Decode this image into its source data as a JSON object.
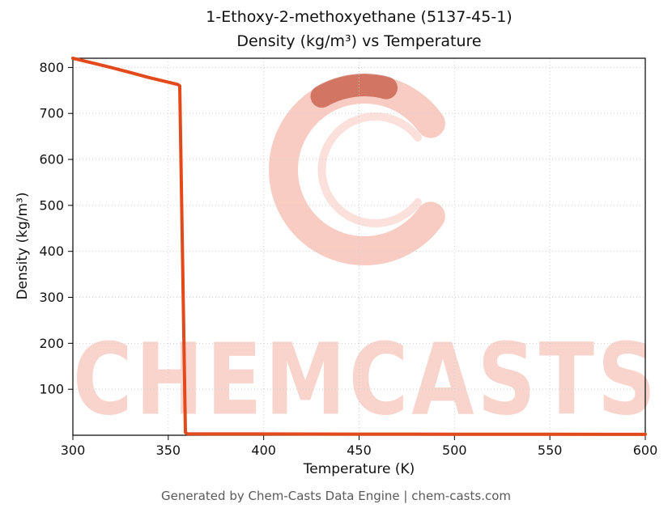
{
  "title": {
    "line1": "1-Ethoxy-2-methoxyethane (5137-45-1)",
    "line2": "Density (kg/m³) vs Temperature"
  },
  "footer": "Generated by Chem-Casts Data Engine | chem-casts.com",
  "watermark": {
    "text": "CHEMCASTS",
    "color": "#e75535"
  },
  "chart_data": {
    "type": "line",
    "title": "1-Ethoxy-2-methoxyethane (5137-45-1) — Density (kg/m³) vs Temperature",
    "xlabel": "Temperature (K)",
    "ylabel": "Density (kg/m³)",
    "xlim": [
      300,
      600
    ],
    "ylim": [
      0,
      820
    ],
    "x_ticks": [
      300,
      350,
      400,
      450,
      500,
      550,
      600
    ],
    "y_ticks": [
      100,
      200,
      300,
      400,
      500,
      600,
      700,
      800
    ],
    "grid": true,
    "legend": "none",
    "line_color": "#e2491b",
    "line_width": 4,
    "series": [
      {
        "name": "Density",
        "points": [
          [
            300,
            820
          ],
          [
            310,
            810
          ],
          [
            320,
            800
          ],
          [
            330,
            789
          ],
          [
            340,
            778
          ],
          [
            350,
            768
          ],
          [
            355,
            763
          ],
          [
            356,
            760
          ],
          [
            359,
            6
          ],
          [
            360,
            3
          ],
          [
            400,
            2.8
          ],
          [
            450,
            2.5
          ],
          [
            500,
            2.3
          ],
          [
            550,
            2.1
          ],
          [
            600,
            2.0
          ]
        ]
      }
    ]
  }
}
